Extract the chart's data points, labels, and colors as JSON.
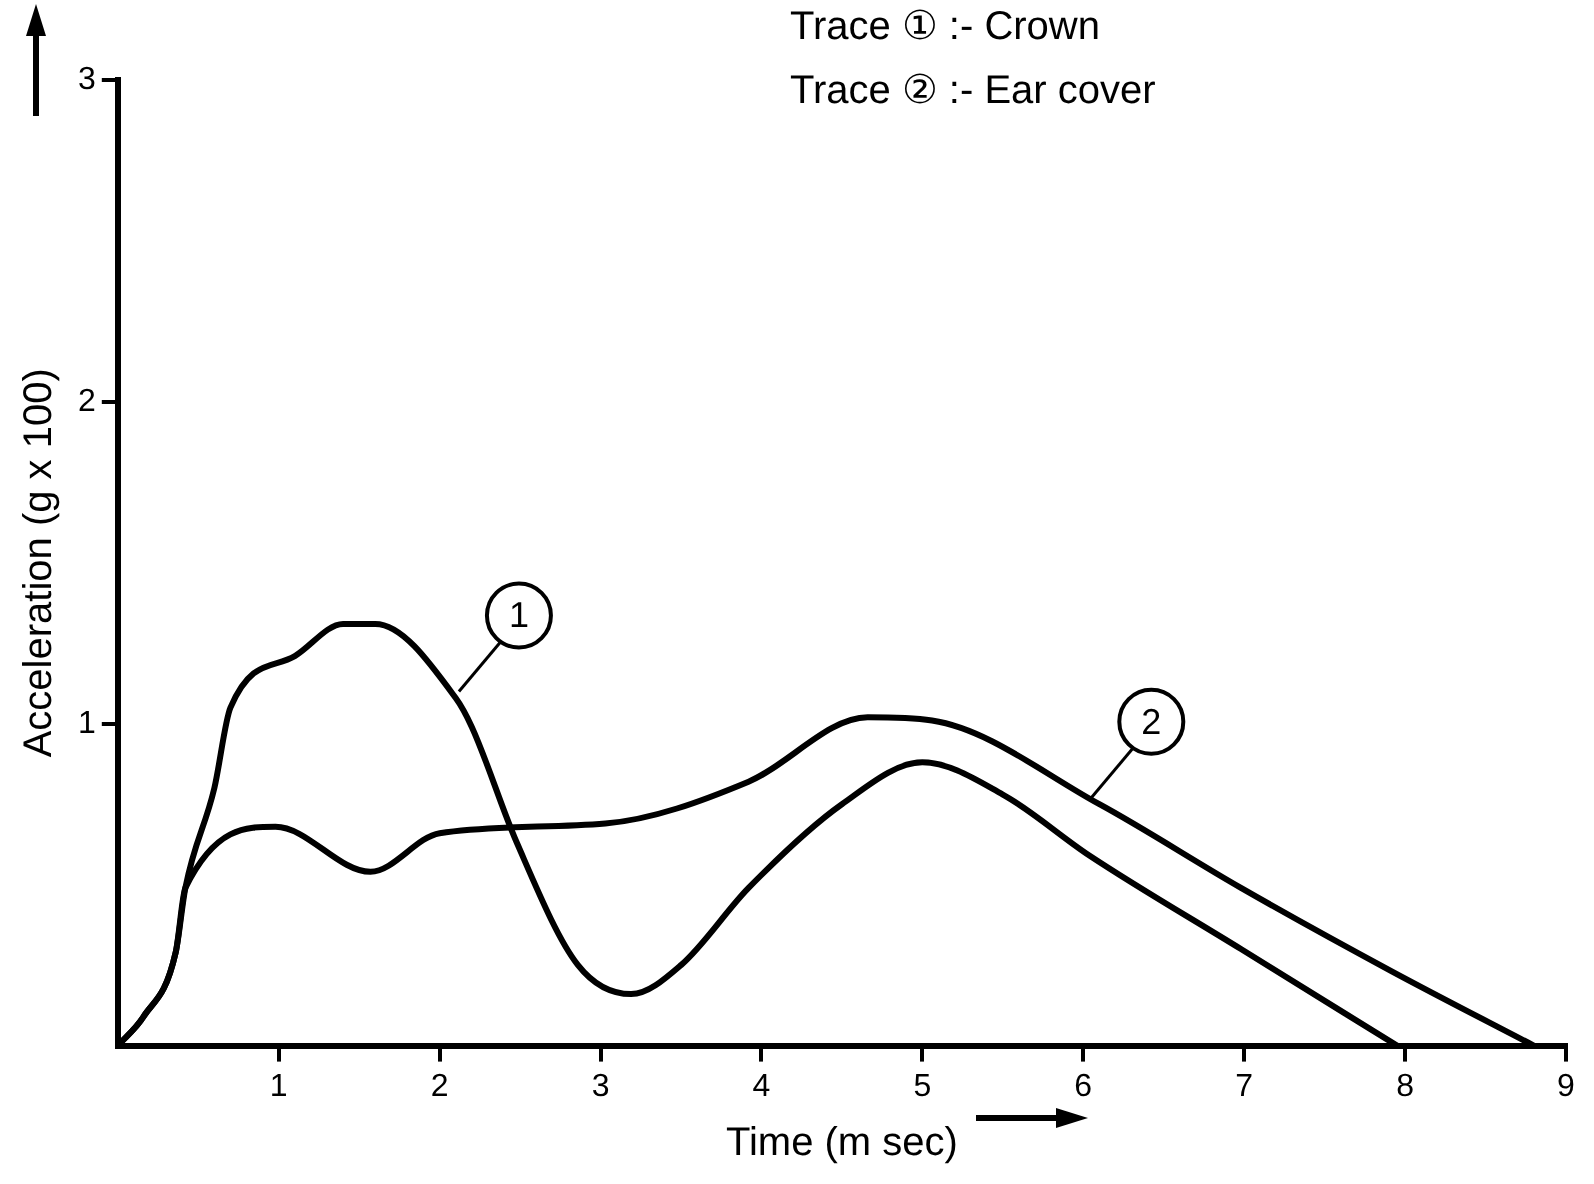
{
  "chart_data": {
    "type": "line",
    "xlabel": "Time (m sec)",
    "ylabel": "Acceleration (g x 100)",
    "xlim": [
      0,
      9
    ],
    "xticks": [
      1,
      2,
      3,
      4,
      5,
      6,
      7,
      8,
      9
    ],
    "ylim": [
      0,
      3
    ],
    "yticks": [
      1,
      2,
      3
    ],
    "grid": false,
    "legend": false,
    "marker": "none",
    "line_style": "solid",
    "series": [
      {
        "color": "#000000",
        "x": [
          0,
          0.16,
          0.36,
          0.42,
          0.6,
          0.7,
          1.1,
          1.4,
          1.6,
          2.1,
          2.2,
          2.48,
          2.86,
          3.19,
          3.5,
          3.92,
          4.5,
          5.0,
          5.5,
          6.04,
          6.98,
          7.95
        ],
        "values": [
          0,
          0.09,
          0.29,
          0.49,
          0.8,
          1.05,
          1.21,
          1.31,
          1.31,
          1.08,
          0.99,
          0.63,
          0.25,
          0.16,
          0.25,
          0.49,
          0.75,
          0.88,
          0.78,
          0.59,
          0.3,
          0
        ]
      },
      {
        "color": "#000000",
        "x": [
          0,
          0.16,
          0.36,
          0.42,
          0.98,
          1.57,
          2.0,
          3.03,
          3.92,
          4.66,
          5.06,
          6.1,
          6.98,
          7.92,
          8.8
        ],
        "values": [
          0,
          0.09,
          0.29,
          0.49,
          0.68,
          0.54,
          0.66,
          0.69,
          0.82,
          1.02,
          1.01,
          0.75,
          0.49,
          0.23,
          0
        ]
      }
    ],
    "annotations": [
      "Trace ① :- Crown",
      "Trace ② :- Ear cover",
      {
        "text": "1",
        "x": 2.12,
        "y": 1.1
      },
      {
        "text": "2",
        "x": 6.05,
        "y": 0.77
      }
    ]
  }
}
